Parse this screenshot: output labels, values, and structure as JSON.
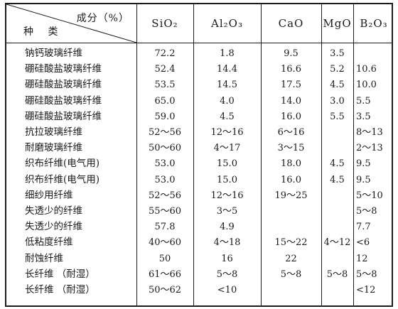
{
  "header": {
    "corner_component": "成分（%）",
    "corner_type": "种 类",
    "columns": [
      "SiO₂",
      "Al₂O₃",
      "CaO",
      "MgO",
      "B₂O₃"
    ]
  },
  "rows": [
    {
      "name": "钠钙玻璃纤维",
      "sio2": "72.2",
      "al2o3": "1.8",
      "cao": "9.5",
      "mgo": "3.5",
      "b2o3": ""
    },
    {
      "name": "硼硅酸盐玻璃纤维",
      "sio2": "52.4",
      "al2o3": "14.4",
      "cao": "16.6",
      "mgo": "5.2",
      "b2o3": "10.6"
    },
    {
      "name": "硼硅酸盐玻璃纤维",
      "sio2": "53.5",
      "al2o3": "14.5",
      "cao": "17.5",
      "mgo": "4.5",
      "b2o3": "10.0"
    },
    {
      "name": "硼硅酸盐玻璃纤维",
      "sio2": "65.0",
      "al2o3": "4.0",
      "cao": "14.0",
      "mgo": "3.0",
      "b2o3": "5.5"
    },
    {
      "name": "硼硅酸盐玻璃纤维",
      "sio2": "59.0",
      "al2o3": "4.5",
      "cao": "16.0",
      "mgo": "5.5",
      "b2o3": "3.5"
    },
    {
      "name": "抗拉玻璃纤维",
      "sio2": "52～56",
      "al2o3": "12～16",
      "cao": "6～16",
      "mgo": "",
      "b2o3": "8～13"
    },
    {
      "name": "耐磨玻璃纤维",
      "sio2": "50～60",
      "al2o3": "4～17",
      "cao": "3～15",
      "mgo": "",
      "b2o3": "2～13"
    },
    {
      "name": "织布纤维(电气用)",
      "sio2": "53.0",
      "al2o3": "15.0",
      "cao": "18.0",
      "mgo": "4.5",
      "b2o3": "9.5"
    },
    {
      "name": "织布纤维(电气用)",
      "sio2": "53.0",
      "al2o3": "15.0",
      "cao": "16.0",
      "mgo": "4.5",
      "b2o3": "9.5"
    },
    {
      "name": "细纱用纤维",
      "sio2": "52～56",
      "al2o3": "12～16",
      "cao": "19～25",
      "mgo": "",
      "b2o3": "5～10"
    },
    {
      "name": "失透少的纤维",
      "sio2": "55～60",
      "al2o3": "3～5",
      "cao": "",
      "mgo": "",
      "b2o3": "5～8"
    },
    {
      "name": "失透少的纤维",
      "sio2": "57.8",
      "al2o3": "4.9",
      "cao": "",
      "mgo": "",
      "b2o3": "7.7"
    },
    {
      "name": "低粘度纤维",
      "sio2": "40～60",
      "al2o3": "4～18",
      "cao": "15～22",
      "mgo": "4～12",
      "b2o3": "<6"
    },
    {
      "name": "耐蚀纤维",
      "sio2": "50",
      "al2o3": "16",
      "cao": "22",
      "mgo": "",
      "b2o3": "12"
    },
    {
      "name": "长纤维 （耐湿）",
      "sio2": "61～66",
      "al2o3": "5～8",
      "cao": "5～8",
      "mgo": "5～8",
      "b2o3": "5～8"
    },
    {
      "name": "长纤维 （耐湿）",
      "sio2": "50～62",
      "al2o3": "<10",
      "cao": "",
      "mgo": "",
      "b2o3": "<12"
    }
  ]
}
